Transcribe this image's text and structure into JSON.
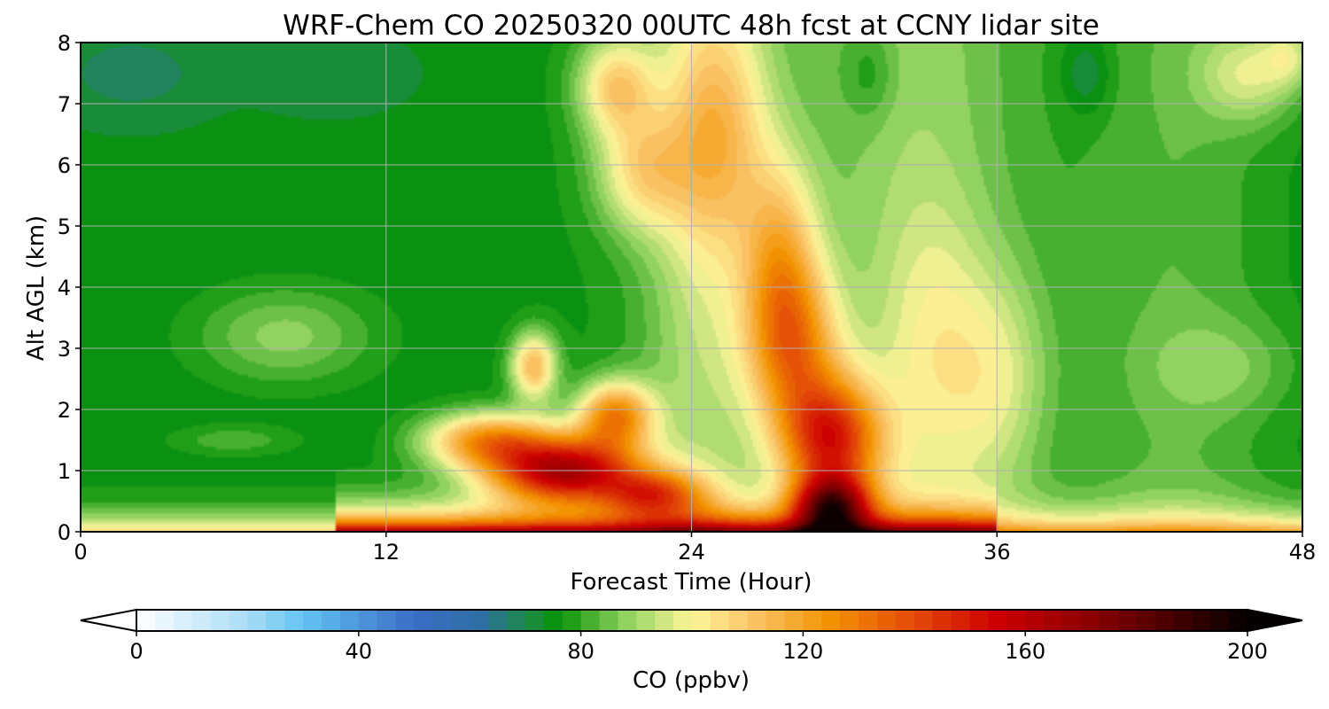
{
  "chart_data": {
    "type": "heatmap",
    "title": "WRF-Chem CO  20250320 00UTC 48h fcst at CCNY lidar site",
    "xlabel": "Forecast Time (Hour)",
    "ylabel": "Alt AGL (km)",
    "xlim": [
      0,
      48
    ],
    "ylim": [
      0,
      8
    ],
    "x_ticks": [
      "0",
      "12",
      "24",
      "36",
      "48"
    ],
    "y_ticks": [
      "0",
      "1",
      "2",
      "3",
      "4",
      "5",
      "6",
      "7",
      "8"
    ],
    "grid": true,
    "colorbar": {
      "label": "CO  (ppbv)",
      "range": [
        0,
        200
      ],
      "ticks": [
        "0",
        "40",
        "80",
        "120",
        "160",
        "200"
      ],
      "extend": "both",
      "stops": [
        {
          "value": 0,
          "color": "#ffffff"
        },
        {
          "value": 20,
          "color": "#a9dcf5"
        },
        {
          "value": 30,
          "color": "#63c3f2"
        },
        {
          "value": 50,
          "color": "#3b6dc6"
        },
        {
          "value": 62,
          "color": "#2f6fa4"
        },
        {
          "value": 70,
          "color": "#1f8a4b"
        },
        {
          "value": 76,
          "color": "#079207"
        },
        {
          "value": 88,
          "color": "#8fd160"
        },
        {
          "value": 100,
          "color": "#fdf59a"
        },
        {
          "value": 112,
          "color": "#f9c060"
        },
        {
          "value": 125,
          "color": "#f39200"
        },
        {
          "value": 140,
          "color": "#e34a08"
        },
        {
          "value": 155,
          "color": "#cc0000"
        },
        {
          "value": 175,
          "color": "#7d0000"
        },
        {
          "value": 200,
          "color": "#050000"
        }
      ]
    },
    "features": [
      {
        "t": 8,
        "z": 3.2,
        "value": 14,
        "st": 3.5,
        "sz": 0.8
      },
      {
        "t": 6,
        "z": 1.5,
        "value": 8,
        "st": 2.5,
        "sz": 0.25
      },
      {
        "t": 2,
        "z": 7.5,
        "value": -6,
        "st": 3,
        "sz": 0.7
      },
      {
        "t": 10,
        "z": 7.5,
        "value": -4,
        "st": 3,
        "sz": 0.6
      },
      {
        "t": 16,
        "z": 1.5,
        "value": 45,
        "st": 2.5,
        "sz": 0.45
      },
      {
        "t": 19,
        "z": 1.0,
        "value": 85,
        "st": 3.0,
        "sz": 0.55
      },
      {
        "t": 21,
        "z": 1.9,
        "value": 50,
        "st": 1.5,
        "sz": 0.55
      },
      {
        "t": 17.8,
        "z": 2.7,
        "value": 38,
        "st": 0.9,
        "sz": 0.55
      },
      {
        "t": 22.5,
        "z": 0.6,
        "value": 45,
        "st": 2.0,
        "sz": 0.4
      },
      {
        "t": 21,
        "z": 7.3,
        "value": 30,
        "st": 1.5,
        "sz": 0.8
      },
      {
        "t": 22,
        "z": 5.9,
        "value": 25,
        "st": 1.8,
        "sz": 1.0
      },
      {
        "t": 25,
        "z": 6.5,
        "value": 25,
        "st": 2.0,
        "sz": 2.0
      },
      {
        "t": 28,
        "z": 3.0,
        "value": 40,
        "st": 1.8,
        "sz": 1.3
      },
      {
        "t": 29.5,
        "z": 1.5,
        "value": 65,
        "st": 2.0,
        "sz": 1.0
      },
      {
        "t": 29.5,
        "z": 0.4,
        "value": 75,
        "st": 1.5,
        "sz": 0.5
      },
      {
        "t": 27.5,
        "z": 4.5,
        "value": 30,
        "st": 1.5,
        "sz": 1.6
      },
      {
        "t": 33.5,
        "z": 3.0,
        "value": 12,
        "st": 2.0,
        "sz": 2.5
      },
      {
        "t": 36,
        "z": 2.5,
        "value": 15,
        "st": 2.0,
        "sz": 1.8
      },
      {
        "t": 46,
        "z": 7.5,
        "value": 18,
        "st": 2.0,
        "sz": 0.8
      },
      {
        "t": 47.5,
        "z": 7.8,
        "value": 14,
        "st": 1.0,
        "sz": 0.5
      },
      {
        "t": 45,
        "z": 2.7,
        "value": 8,
        "st": 3.0,
        "sz": 0.8
      },
      {
        "t": 31,
        "z": 7.5,
        "value": -8,
        "st": 1.0,
        "sz": 0.8
      },
      {
        "t": 39.5,
        "z": 7.5,
        "value": -9,
        "st": 1.0,
        "sz": 0.7
      }
    ]
  }
}
